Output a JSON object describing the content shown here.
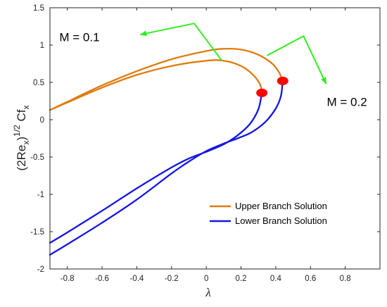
{
  "chart_data": {
    "type": "line",
    "title": "",
    "xlabel": "λ",
    "ylabel": "(2Re_x)^1/2 Cf_x",
    "ylabel_parts": {
      "base_open": "(2Re",
      "sub_x": "x",
      "close": ")",
      "sup": "1/2",
      "cf": " Cf",
      "sub_x2": "x"
    },
    "xlim": [
      -0.9,
      1.0
    ],
    "ylim": [
      -2.0,
      1.5
    ],
    "xticks": [
      "-0.8",
      "-0.6",
      "-0.4",
      "-0.2",
      "0",
      "0.2",
      "0.4",
      "0.6",
      "0.8"
    ],
    "xtick_values": [
      -0.8,
      -0.6,
      -0.4,
      -0.2,
      0,
      0.2,
      0.4,
      0.6,
      0.8
    ],
    "yticks": [
      "-2",
      "-1.5",
      "-1",
      "-0.5",
      "0",
      "0.5",
      "1",
      "1.5"
    ],
    "ytick_values": [
      -2,
      -1.5,
      -1,
      -0.5,
      0,
      0.5,
      1,
      1.5
    ],
    "grid": false,
    "legend_position": "bottom-right",
    "colors": {
      "upper": "#E07B10",
      "lower": "#1515E6",
      "critical": "#FF0000",
      "arrow": "#33EE22",
      "axis": "#262626"
    },
    "series": [
      {
        "name": "Upper Branch Solution",
        "branch": "upper",
        "M": 0.1,
        "x": [
          -0.9,
          -0.8,
          -0.6,
          -0.4,
          -0.2,
          0.0,
          0.1,
          0.2,
          0.27,
          0.31,
          0.32
        ],
        "y": [
          0.13,
          0.23,
          0.43,
          0.6,
          0.72,
          0.79,
          0.79,
          0.72,
          0.6,
          0.47,
          0.36
        ]
      },
      {
        "name": "Upper Branch Solution",
        "branch": "upper",
        "M": 0.2,
        "x": [
          -0.9,
          -0.8,
          -0.6,
          -0.4,
          -0.2,
          0.0,
          0.1,
          0.2,
          0.3,
          0.38,
          0.42,
          0.44
        ],
        "y": [
          0.13,
          0.24,
          0.46,
          0.65,
          0.81,
          0.92,
          0.95,
          0.94,
          0.87,
          0.75,
          0.63,
          0.52
        ]
      },
      {
        "name": "Lower Branch Solution",
        "branch": "lower",
        "M": 0.1,
        "x": [
          0.32,
          0.3,
          0.25,
          0.18,
          0.1,
          0.0,
          -0.1,
          -0.2,
          -0.4,
          -0.6,
          -0.8,
          -0.9
        ],
        "y": [
          0.36,
          0.14,
          -0.06,
          -0.21,
          -0.33,
          -0.43,
          -0.52,
          -0.64,
          -0.92,
          -1.22,
          -1.51,
          -1.65
        ]
      },
      {
        "name": "Lower Branch Solution",
        "branch": "lower",
        "M": 0.2,
        "x": [
          0.44,
          0.43,
          0.4,
          0.34,
          0.26,
          0.18,
          0.1,
          0.0,
          -0.1,
          -0.2,
          -0.4,
          -0.6,
          -0.8,
          -0.9
        ],
        "y": [
          0.52,
          0.32,
          0.15,
          -0.03,
          -0.17,
          -0.25,
          -0.32,
          -0.42,
          -0.56,
          -0.72,
          -1.07,
          -1.38,
          -1.67,
          -1.81
        ]
      }
    ],
    "critical_points": [
      {
        "label": "M = 0.1",
        "x": 0.32,
        "y": 0.36
      },
      {
        "label": "M = 0.2",
        "x": 0.44,
        "y": 0.52
      }
    ],
    "annotations": [
      {
        "text": "M = 0.1",
        "text_x": -0.73,
        "text_y": 1.11,
        "path": [
          [
            0.09,
            0.79
          ],
          [
            -0.07,
            1.29
          ],
          [
            -0.38,
            1.14
          ]
        ]
      },
      {
        "text": "M = 0.2",
        "text_x": 0.81,
        "text_y": 0.24,
        "path": [
          [
            0.35,
            0.86
          ],
          [
            0.56,
            1.12
          ],
          [
            0.69,
            0.48
          ]
        ]
      }
    ],
    "legend": [
      {
        "label": "Upper Branch Solution",
        "branch": "upper"
      },
      {
        "label": "Lower Branch Solution",
        "branch": "lower"
      }
    ]
  }
}
